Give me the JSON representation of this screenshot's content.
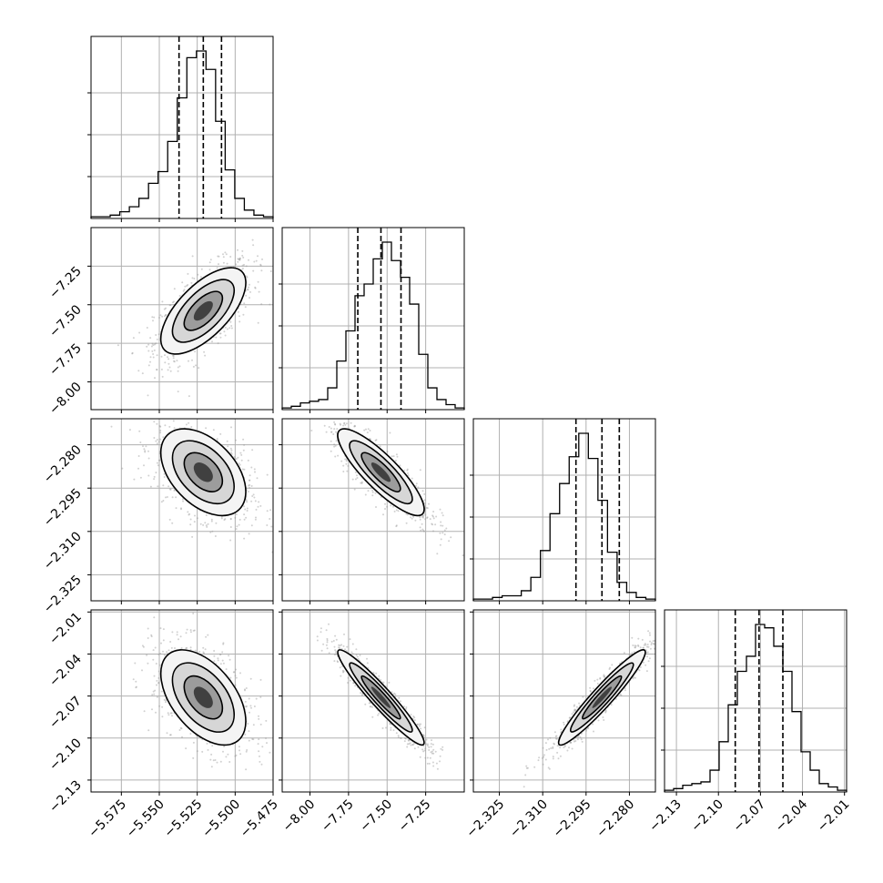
{
  "chart_data": {
    "type": "corner",
    "title": "",
    "dimensions": [
      {
        "name": "",
        "range": [
          -5.595,
          -5.475
        ],
        "ticks": [
          "−5.575",
          "−5.550",
          "−5.525",
          "−5.500",
          "−5.475"
        ],
        "tick_values": [
          -5.575,
          -5.55,
          -5.525,
          -5.5,
          -5.475
        ],
        "quantiles": [
          -5.537,
          -5.521,
          -5.509
        ]
      },
      {
        "name": "",
        "range": [
          -8.18,
          -7.0
        ],
        "ticks": [
          "−8.00",
          "−7.75",
          "−7.50",
          "−7.25"
        ],
        "tick_values": [
          -8.0,
          -7.75,
          -7.5,
          -7.25
        ],
        "quantiles": [
          -7.69,
          -7.54,
          -7.41
        ]
      },
      {
        "name": "",
        "range": [
          -2.334,
          -2.271
        ],
        "ticks": [
          "−2.325",
          "−2.310",
          "−2.295",
          "−2.280"
        ],
        "tick_values": [
          -2.325,
          -2.31,
          -2.295,
          -2.28
        ],
        "quantiles": [
          -2.2985,
          -2.2895,
          -2.2835
        ]
      },
      {
        "name": "",
        "range": [
          -2.1385,
          -2.0085
        ],
        "ticks": [
          "−2.13",
          "−2.10",
          "−2.07",
          "−2.04",
          "−2.01"
        ],
        "tick_values": [
          -2.13,
          -2.1,
          -2.07,
          -2.04,
          -2.01
        ],
        "quantiles": [
          -2.088,
          -2.071,
          -2.054
        ]
      }
    ],
    "correlations": [
      [
        1,
        0.65,
        -0.45,
        -0.5
      ],
      [
        0.65,
        1,
        -0.85,
        -0.95
      ],
      [
        -0.45,
        -0.85,
        1,
        0.95
      ],
      [
        -0.5,
        -0.95,
        0.95,
        1
      ]
    ],
    "histograms": [
      [
        1,
        1,
        2,
        4,
        7,
        12,
        21,
        28,
        46,
        72,
        96,
        100,
        89,
        58,
        29,
        12,
        5,
        2,
        1
      ],
      [
        1,
        2,
        4,
        5,
        6,
        13,
        29,
        47,
        68,
        75,
        90,
        100,
        89,
        79,
        63,
        33,
        13,
        6,
        3,
        1
      ],
      [
        1,
        1,
        2,
        3,
        3,
        6,
        14,
        30,
        52,
        70,
        86,
        100,
        85,
        60,
        29,
        11,
        5,
        2,
        1
      ],
      [
        1,
        2,
        4,
        5,
        6,
        13,
        30,
        52,
        72,
        81,
        100,
        98,
        87,
        72,
        48,
        24,
        13,
        5,
        3,
        1
      ]
    ],
    "grid": true,
    "legend": "none"
  }
}
